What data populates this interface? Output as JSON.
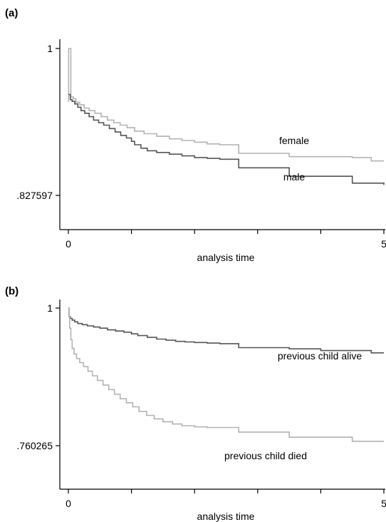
{
  "chart_data": [
    {
      "type": "line",
      "panel": "(a)",
      "xlabel": "analysis time",
      "ylabel": "",
      "xlim": [
        0,
        5
      ],
      "ylim": [
        0.8276,
        1
      ],
      "x_ticks": [
        0,
        1,
        2,
        3,
        4,
        5
      ],
      "x_tick_labels": [
        "0",
        "",
        "",
        "",
        "",
        "5"
      ],
      "y_ticks": [
        1,
        0.827597
      ],
      "y_tick_labels": [
        "1",
        ".827597"
      ],
      "series": [
        {
          "name": "female",
          "color": "#b3b3b3",
          "x": [
            0,
            0.005,
            0.02,
            0.04,
            0.08,
            0.12,
            0.18,
            0.25,
            0.33,
            0.42,
            0.52,
            0.62,
            0.72,
            0.82,
            0.93,
            1.05,
            1.2,
            1.4,
            1.6,
            1.8,
            2.0,
            2.2,
            2.4,
            2.6,
            2.7,
            3.0,
            3.2,
            3.4,
            3.5,
            4.0,
            4.2,
            4.5,
            4.8,
            5.0
          ],
          "y": [
            0.938,
            1.0,
            1.0,
            0.943,
            0.941,
            0.937,
            0.934,
            0.93,
            0.927,
            0.924,
            0.92,
            0.916,
            0.913,
            0.91,
            0.907,
            0.903,
            0.9,
            0.897,
            0.894,
            0.892,
            0.89,
            0.888,
            0.887,
            0.887,
            0.877,
            0.877,
            0.877,
            0.877,
            0.873,
            0.873,
            0.873,
            0.872,
            0.868,
            0.868
          ]
        },
        {
          "name": "male",
          "color": "#555555",
          "x": [
            0,
            0.01,
            0.03,
            0.06,
            0.1,
            0.15,
            0.2,
            0.26,
            0.33,
            0.4,
            0.48,
            0.56,
            0.65,
            0.74,
            0.83,
            0.92,
            1.0,
            1.05,
            1.15,
            1.25,
            1.4,
            1.6,
            1.8,
            2.0,
            2.2,
            2.4,
            2.5,
            2.6,
            2.7,
            3.0,
            3.2,
            3.5,
            4.0,
            4.2,
            4.5,
            4.8,
            5.0
          ],
          "y": [
            0.946,
            0.946,
            0.94,
            0.938,
            0.935,
            0.931,
            0.927,
            0.924,
            0.92,
            0.916,
            0.913,
            0.91,
            0.906,
            0.902,
            0.898,
            0.895,
            0.891,
            0.887,
            0.883,
            0.88,
            0.878,
            0.876,
            0.874,
            0.872,
            0.871,
            0.87,
            0.87,
            0.87,
            0.86,
            0.86,
            0.86,
            0.85,
            0.85,
            0.85,
            0.842,
            0.842,
            0.84
          ]
        }
      ]
    },
    {
      "type": "line",
      "panel": "(b)",
      "xlabel": "analysis time",
      "ylabel": "",
      "xlim": [
        0,
        5
      ],
      "ylim": [
        0.7603,
        1
      ],
      "x_ticks": [
        0,
        1,
        2,
        3,
        4,
        5
      ],
      "x_tick_labels": [
        "0",
        "",
        "",
        "",
        "",
        "5"
      ],
      "y_ticks": [
        1,
        0.760265
      ],
      "y_tick_labels": [
        "1",
        ".760265"
      ],
      "series": [
        {
          "name": "previous child alive",
          "color": "#555555",
          "x": [
            0,
            0.01,
            0.03,
            0.06,
            0.1,
            0.15,
            0.22,
            0.3,
            0.4,
            0.5,
            0.62,
            0.75,
            0.88,
            1.0,
            1.1,
            1.25,
            1.4,
            1.55,
            1.7,
            1.85,
            2.0,
            2.2,
            2.4,
            2.6,
            2.7,
            3.0,
            3.2,
            3.5,
            4.0,
            4.2,
            4.5,
            4.8,
            5.0
          ],
          "y": [
            1.0,
            0.985,
            0.982,
            0.979,
            0.976,
            0.973,
            0.971,
            0.969,
            0.967,
            0.965,
            0.962,
            0.96,
            0.958,
            0.955,
            0.952,
            0.949,
            0.946,
            0.944,
            0.942,
            0.941,
            0.94,
            0.939,
            0.938,
            0.938,
            0.931,
            0.931,
            0.931,
            0.929,
            0.926,
            0.926,
            0.926,
            0.922,
            0.922
          ]
        },
        {
          "name": "previous child died",
          "color": "#b3b3b3",
          "x": [
            0,
            0.01,
            0.02,
            0.04,
            0.06,
            0.09,
            0.13,
            0.18,
            0.24,
            0.31,
            0.38,
            0.46,
            0.55,
            0.64,
            0.73,
            0.82,
            0.92,
            1.02,
            1.12,
            1.24,
            1.36,
            1.5,
            1.65,
            1.8,
            2.0,
            2.2,
            2.4,
            2.6,
            2.7,
            3.0,
            3.2,
            3.5,
            4.0,
            4.2,
            4.5,
            4.8,
            5.0
          ],
          "y": [
            1.0,
            0.985,
            0.965,
            0.945,
            0.93,
            0.92,
            0.912,
            0.905,
            0.898,
            0.89,
            0.882,
            0.874,
            0.866,
            0.858,
            0.85,
            0.842,
            0.835,
            0.828,
            0.82,
            0.813,
            0.807,
            0.802,
            0.798,
            0.795,
            0.793,
            0.792,
            0.792,
            0.792,
            0.784,
            0.784,
            0.784,
            0.775,
            0.775,
            0.775,
            0.768,
            0.768,
            0.768
          ]
        }
      ]
    }
  ]
}
